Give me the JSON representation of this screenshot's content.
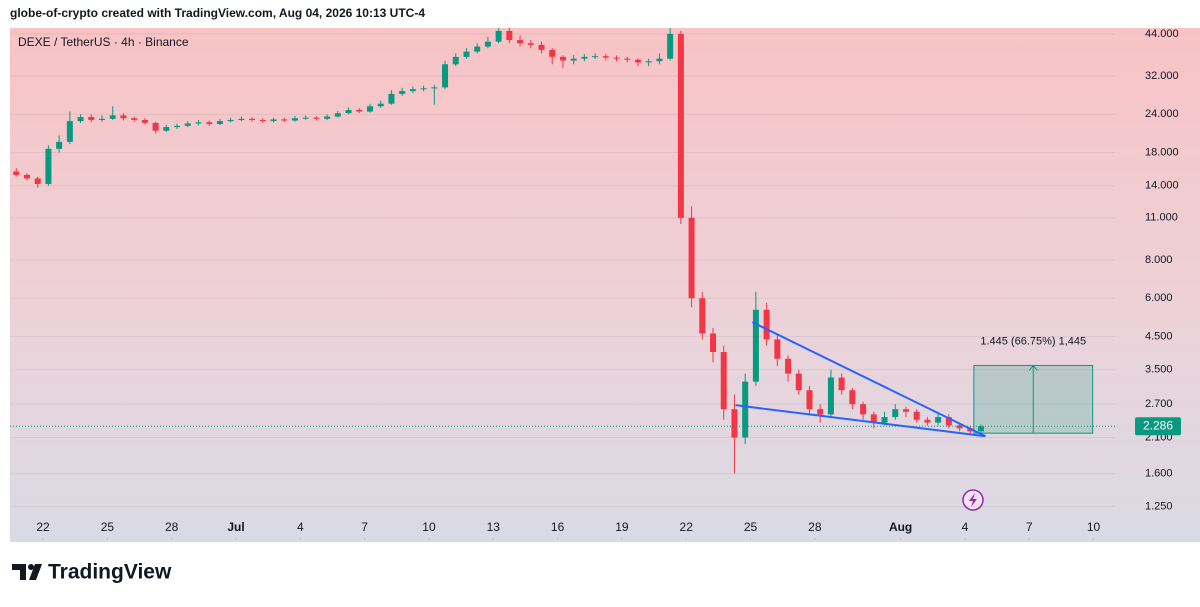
{
  "header": {
    "attribution": "globe-of-crypto created with TradingView.com, Aug 04, 2026 10:13 UTC-4"
  },
  "footer": {
    "brand": "TradingView"
  },
  "chart_data": {
    "type": "candlestick",
    "title": "DEXE / TetherUS · 4h · Binance",
    "log_scale": true,
    "grid": true,
    "up_color": "#089981",
    "down_color": "#f23645",
    "xlim": [
      "2026-06-20T11:00",
      "2026-08-11T00:00"
    ],
    "ylim": [
      0.97,
      46
    ],
    "xticks": [
      {
        "value": "2026-06-22",
        "label": "22"
      },
      {
        "value": "2026-06-25",
        "label": "25"
      },
      {
        "value": "2026-06-28",
        "label": "28"
      },
      {
        "value": "2026-07-01",
        "label": "Jul"
      },
      {
        "value": "2026-07-04",
        "label": "4"
      },
      {
        "value": "2026-07-07",
        "label": "7"
      },
      {
        "value": "2026-07-10",
        "label": "10"
      },
      {
        "value": "2026-07-13",
        "label": "13"
      },
      {
        "value": "2026-07-16",
        "label": "16"
      },
      {
        "value": "2026-07-19",
        "label": "19"
      },
      {
        "value": "2026-07-22",
        "label": "22"
      },
      {
        "value": "2026-07-25",
        "label": "25"
      },
      {
        "value": "2026-07-28",
        "label": "28"
      },
      {
        "value": "2026-08-01",
        "label": "Aug"
      },
      {
        "value": "2026-08-04",
        "label": "4"
      },
      {
        "value": "2026-08-07",
        "label": "7"
      },
      {
        "value": "2026-08-10",
        "label": "10"
      }
    ],
    "yticks": [
      {
        "value": 44,
        "label": "44.000"
      },
      {
        "value": 32,
        "label": "32.000"
      },
      {
        "value": 24,
        "label": "24.000"
      },
      {
        "value": 18,
        "label": "18.000"
      },
      {
        "value": 14,
        "label": "14.000"
      },
      {
        "value": 11,
        "label": "11.000"
      },
      {
        "value": 8,
        "label": "8.000"
      },
      {
        "value": 6,
        "label": "6.000"
      },
      {
        "value": 4.5,
        "label": "4.500"
      },
      {
        "value": 3.5,
        "label": "3.500"
      },
      {
        "value": 2.7,
        "label": "2.700"
      },
      {
        "value": 2.1,
        "label": "2.100"
      },
      {
        "value": 1.6,
        "label": "1.600"
      },
      {
        "value": 1.25,
        "label": "1.250"
      }
    ],
    "x": [
      "2026-06-20T12:00",
      "2026-06-21T00:00",
      "2026-06-21T12:00",
      "2026-06-22T00:00",
      "2026-06-22T12:00",
      "2026-06-23T00:00",
      "2026-06-23T12:00",
      "2026-06-24T00:00",
      "2026-06-24T12:00",
      "2026-06-25T00:00",
      "2026-06-25T12:00",
      "2026-06-26T00:00",
      "2026-06-26T12:00",
      "2026-06-27T00:00",
      "2026-06-27T12:00",
      "2026-06-28T00:00",
      "2026-06-28T12:00",
      "2026-06-29T00:00",
      "2026-06-29T12:00",
      "2026-06-30T00:00",
      "2026-06-30T12:00",
      "2026-07-01T00:00",
      "2026-07-01T12:00",
      "2026-07-02T00:00",
      "2026-07-02T12:00",
      "2026-07-03T00:00",
      "2026-07-03T12:00",
      "2026-07-04T00:00",
      "2026-07-04T12:00",
      "2026-07-05T00:00",
      "2026-07-05T12:00",
      "2026-07-06T00:00",
      "2026-07-06T12:00",
      "2026-07-07T00:00",
      "2026-07-07T12:00",
      "2026-07-08T00:00",
      "2026-07-08T12:00",
      "2026-07-09T00:00",
      "2026-07-09T12:00",
      "2026-07-10T00:00",
      "2026-07-10T12:00",
      "2026-07-11T00:00",
      "2026-07-11T12:00",
      "2026-07-12T00:00",
      "2026-07-12T12:00",
      "2026-07-13T00:00",
      "2026-07-13T12:00",
      "2026-07-14T00:00",
      "2026-07-14T12:00",
      "2026-07-15T00:00",
      "2026-07-15T12:00",
      "2026-07-16T00:00",
      "2026-07-16T12:00",
      "2026-07-17T00:00",
      "2026-07-17T12:00",
      "2026-07-18T00:00",
      "2026-07-18T12:00",
      "2026-07-19T00:00",
      "2026-07-19T12:00",
      "2026-07-20T00:00",
      "2026-07-20T12:00",
      "2026-07-21T00:00",
      "2026-07-21T12:00",
      "2026-07-22T00:00",
      "2026-07-22T12:00",
      "2026-07-23T00:00",
      "2026-07-23T12:00",
      "2026-07-24T00:00",
      "2026-07-24T12:00",
      "2026-07-25T00:00",
      "2026-07-25T12:00",
      "2026-07-26T00:00",
      "2026-07-26T12:00",
      "2026-07-27T00:00",
      "2026-07-27T12:00",
      "2026-07-28T00:00",
      "2026-07-28T12:00",
      "2026-07-29T00:00",
      "2026-07-29T12:00",
      "2026-07-30T00:00",
      "2026-07-30T12:00",
      "2026-07-31T00:00",
      "2026-07-31T12:00",
      "2026-08-01T00:00",
      "2026-08-01T12:00",
      "2026-08-02T00:00",
      "2026-08-02T12:00",
      "2026-08-03T00:00",
      "2026-08-03T12:00",
      "2026-08-04T00:00",
      "2026-08-04T12:00"
    ],
    "open": [
      15.6,
      15.2,
      14.8,
      14.2,
      18.5,
      19.5,
      22.8,
      23.5,
      23.0,
      23.2,
      23.8,
      23.3,
      23.0,
      22.5,
      21.2,
      21.8,
      22.0,
      22.4,
      22.6,
      22.3,
      22.8,
      23.0,
      23.2,
      23.0,
      22.8,
      23.1,
      22.9,
      23.3,
      23.4,
      23.2,
      23.6,
      24.2,
      24.8,
      24.5,
      25.5,
      26.0,
      28.0,
      28.6,
      29.0,
      29.2,
      29.4,
      35.0,
      37.0,
      38.5,
      40.0,
      41.5,
      45.0,
      42.0,
      41.0,
      40.5,
      39.0,
      37.0,
      36.0,
      36.5,
      37.0,
      37.2,
      36.8,
      36.5,
      36.2,
      35.5,
      35.8,
      36.5,
      44.0,
      11.0,
      6.0,
      4.6,
      4.0,
      2.6,
      2.1,
      3.2,
      5.5,
      4.4,
      3.8,
      3.4,
      3.0,
      2.6,
      2.5,
      3.3,
      3.0,
      2.7,
      2.5,
      2.35,
      2.45,
      2.6,
      2.55,
      2.4,
      2.35,
      2.45,
      2.3,
      2.25,
      2.2
    ],
    "high": [
      16.0,
      15.4,
      15.0,
      19.0,
      20.5,
      24.5,
      24.0,
      24.0,
      23.8,
      25.5,
      24.2,
      23.6,
      23.3,
      22.7,
      22.2,
      22.4,
      22.8,
      23.0,
      22.9,
      23.2,
      23.4,
      23.6,
      23.5,
      23.3,
      23.4,
      23.4,
      23.7,
      23.8,
      23.7,
      24.0,
      24.6,
      25.3,
      25.1,
      26.0,
      26.6,
      28.8,
      29.3,
      29.6,
      29.8,
      30.0,
      36.0,
      38.0,
      39.5,
      41.0,
      43.0,
      46.0,
      46.0,
      43.5,
      42.0,
      41.5,
      39.5,
      37.5,
      37.5,
      37.8,
      38.0,
      37.8,
      37.4,
      37.0,
      36.6,
      36.5,
      38.0,
      46.0,
      45.0,
      12.0,
      6.3,
      4.8,
      4.2,
      2.9,
      3.4,
      6.3,
      5.8,
      4.6,
      3.9,
      3.5,
      3.1,
      2.7,
      3.5,
      3.4,
      3.05,
      2.75,
      2.55,
      2.55,
      2.7,
      2.65,
      2.6,
      2.45,
      2.55,
      2.5,
      2.35,
      2.3,
      2.32
    ],
    "low": [
      15.0,
      14.6,
      13.8,
      14.0,
      18.0,
      19.2,
      22.5,
      22.6,
      22.7,
      23.0,
      22.9,
      22.6,
      22.2,
      20.8,
      21.0,
      21.5,
      21.8,
      22.1,
      22.0,
      22.1,
      22.6,
      22.8,
      22.7,
      22.5,
      22.6,
      22.6,
      22.7,
      23.0,
      22.9,
      23.0,
      23.4,
      24.0,
      24.2,
      24.3,
      25.2,
      25.8,
      27.6,
      28.2,
      28.6,
      25.8,
      29.0,
      34.5,
      36.5,
      38.0,
      39.5,
      41.0,
      41.0,
      40.0,
      39.5,
      38.0,
      35.0,
      34.0,
      35.0,
      35.8,
      36.4,
      36.0,
      35.8,
      35.5,
      34.6,
      34.5,
      35.0,
      36.0,
      10.5,
      5.6,
      4.4,
      3.7,
      2.4,
      1.6,
      2.0,
      3.1,
      4.2,
      3.6,
      3.2,
      2.9,
      2.5,
      2.35,
      2.45,
      2.9,
      2.6,
      2.4,
      2.25,
      2.3,
      2.4,
      2.45,
      2.35,
      2.3,
      2.3,
      2.25,
      2.2,
      2.15,
      2.17
    ],
    "close": [
      15.2,
      14.8,
      14.2,
      18.5,
      19.5,
      22.8,
      23.5,
      23.0,
      23.2,
      23.8,
      23.3,
      23.0,
      22.5,
      21.2,
      21.8,
      22.0,
      22.4,
      22.6,
      22.3,
      22.8,
      23.0,
      23.2,
      23.0,
      22.8,
      23.1,
      22.9,
      23.3,
      23.4,
      23.2,
      23.6,
      24.2,
      24.8,
      24.5,
      25.5,
      26.0,
      28.0,
      28.6,
      29.0,
      29.2,
      29.4,
      35.0,
      37.0,
      38.5,
      40.0,
      41.5,
      45.0,
      42.0,
      41.0,
      40.5,
      39.0,
      37.0,
      36.0,
      36.5,
      37.0,
      37.2,
      36.8,
      36.5,
      36.2,
      35.5,
      35.8,
      36.5,
      44.0,
      11.0,
      6.0,
      4.6,
      4.0,
      2.6,
      2.1,
      3.2,
      5.5,
      4.4,
      3.8,
      3.4,
      3.0,
      2.6,
      2.5,
      3.3,
      3.0,
      2.7,
      2.5,
      2.35,
      2.45,
      2.6,
      2.55,
      2.4,
      2.35,
      2.45,
      2.3,
      2.25,
      2.2,
      2.286
    ],
    "trendlines": [
      {
        "color": "#2962ff",
        "x": [
          "2026-07-25T02:00",
          "2026-08-04T23:00"
        ],
        "y": [
          5.01,
          2.12
        ]
      },
      {
        "color": "#2962ff",
        "x": [
          "2026-07-24T07:00",
          "2026-08-04T23:00"
        ],
        "y": [
          2.68,
          2.12
        ]
      }
    ],
    "measure": {
      "color": "#089981",
      "x": [
        "2026-08-04T10:00",
        "2026-08-09T23:00"
      ],
      "y": [
        2.17,
        3.615
      ],
      "label": "1.445 (66.75%) 1,445"
    }
  }
}
